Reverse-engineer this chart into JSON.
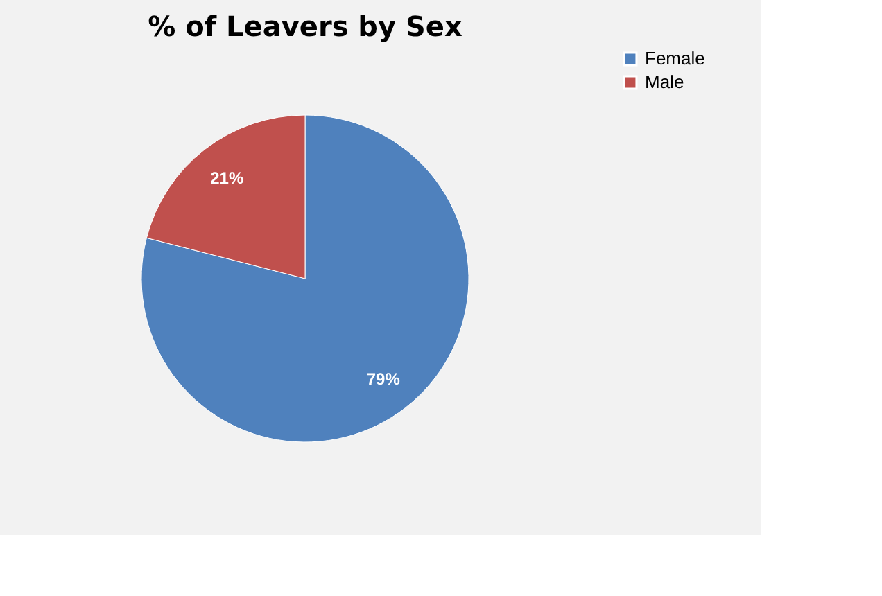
{
  "chart_data": {
    "type": "pie",
    "title": "% of Leavers by Sex",
    "categories": [
      "Female",
      "Male"
    ],
    "values": [
      79,
      21
    ],
    "colors": [
      "#4f81bd",
      "#c0504d"
    ],
    "value_labels": [
      "79%",
      "21%"
    ],
    "legend": "right"
  }
}
